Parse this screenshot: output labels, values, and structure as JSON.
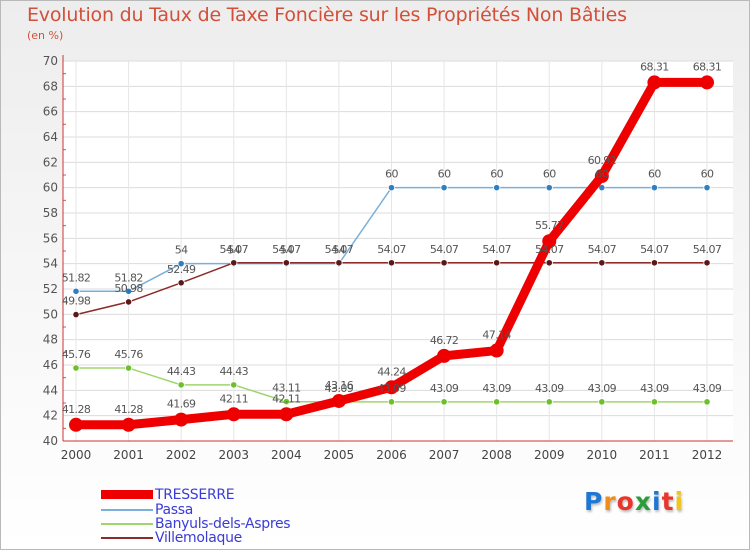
{
  "header": {
    "title": "Evolution du Taux de Taxe Foncière sur les Propriétés Non Bâties",
    "unit": "(en %)"
  },
  "logo": {
    "text": "Proxiti",
    "letters": [
      {
        "ch": "P",
        "color": "#1f77d4"
      },
      {
        "ch": "r",
        "color": "#f08c1e"
      },
      {
        "ch": "o",
        "color": "#e8362b"
      },
      {
        "ch": "x",
        "color": "#2a9d3a"
      },
      {
        "ch": "i",
        "color": "#1f77d4"
      },
      {
        "ch": "t",
        "color": "#e8362b"
      },
      {
        "ch": "i",
        "color": "#f0c61e"
      }
    ]
  },
  "chart_data": {
    "type": "line",
    "x": [
      2000,
      2001,
      2002,
      2003,
      2004,
      2005,
      2006,
      2007,
      2008,
      2009,
      2010,
      2011,
      2012
    ],
    "ylim": [
      40,
      70
    ],
    "yticks": [
      40,
      42,
      44,
      46,
      48,
      50,
      52,
      54,
      56,
      58,
      60,
      62,
      64,
      66,
      68,
      70
    ],
    "grid": true,
    "legend_position": "bottom-left",
    "series": [
      {
        "name": "TRESSERRE",
        "color": "#ee0000",
        "marker_fill": "#ee0000",
        "thick": true,
        "values": [
          41.28,
          41.28,
          41.69,
          42.11,
          42.11,
          43.16,
          44.24,
          46.72,
          47.14,
          55.77,
          60.92,
          68.31,
          68.31
        ],
        "labels": [
          "41.28",
          "41.28",
          "41.69",
          "42.11",
          "42.11",
          "43.16",
          "44.24",
          "46.72",
          "47.14",
          "55.77",
          "60.92",
          "68.31",
          "68.31"
        ]
      },
      {
        "name": "Passa",
        "color": "#7ab0d9",
        "marker_fill": "#2f7fc1",
        "thick": false,
        "values": [
          51.82,
          51.82,
          54,
          54,
          54,
          54,
          60,
          60,
          60,
          60,
          60,
          60,
          60
        ],
        "labels": [
          "51.82",
          "51.82",
          "54",
          "54",
          "54",
          "54",
          "60",
          "60",
          "60",
          "60",
          "60",
          "60",
          "60"
        ]
      },
      {
        "name": "Banyuls-dels-Aspres",
        "color": "#9fd66b",
        "marker_fill": "#6cc02b",
        "thick": false,
        "values": [
          45.76,
          45.76,
          44.43,
          44.43,
          43.11,
          43.09,
          43.09,
          43.09,
          43.09,
          43.09,
          43.09,
          43.09,
          43.09
        ],
        "labels": [
          "45.76",
          "45.76",
          "44.43",
          "44.43",
          "43.11",
          "43.09",
          "43.09",
          "43.09",
          "43.09",
          "43.09",
          "43.09",
          "43.09",
          "43.09"
        ]
      },
      {
        "name": "Villemolaque",
        "color": "#8b2b2b",
        "marker_fill": "#5a1818",
        "thick": false,
        "values": [
          49.98,
          50.98,
          52.49,
          54.07,
          54.07,
          54.07,
          54.07,
          54.07,
          54.07,
          54.07,
          54.07,
          54.07,
          54.07
        ],
        "labels": [
          "49.98",
          "50.98",
          "52.49",
          "54.07",
          "54.07",
          "54.07",
          "54.07",
          "54.07",
          "54.07",
          "54.07",
          "54.07",
          "54.07",
          "54.07"
        ]
      }
    ]
  }
}
